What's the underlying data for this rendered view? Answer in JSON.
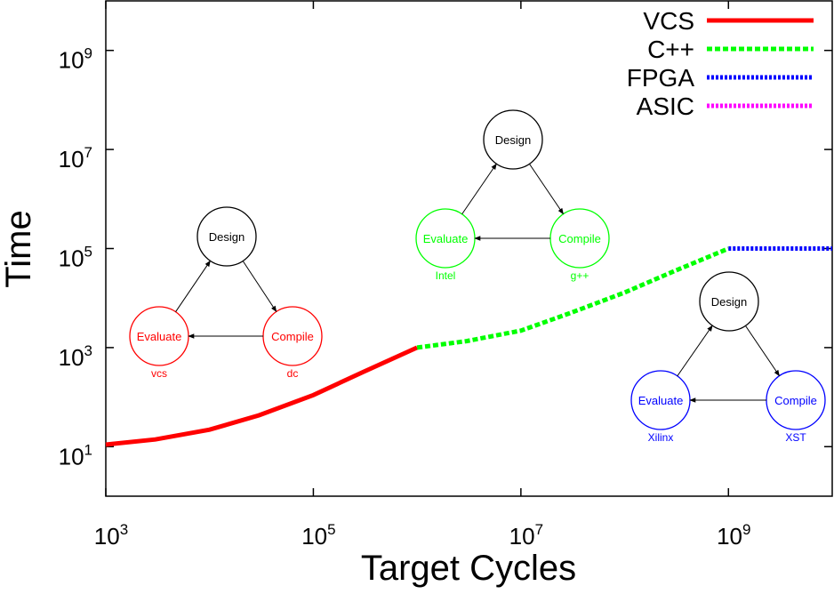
{
  "chart_data": {
    "type": "line",
    "xlabel": "Target Cycles",
    "ylabel": "Time",
    "x_scale": "log",
    "y_scale": "log",
    "xlim": [
      1000,
      10000000000
    ],
    "ylim": [
      1,
      10000000000
    ],
    "x_ticks": [
      {
        "base": "10",
        "exp": "3",
        "value": 1000
      },
      {
        "base": "10",
        "exp": "5",
        "value": 100000
      },
      {
        "base": "10",
        "exp": "7",
        "value": 10000000
      },
      {
        "base": "10",
        "exp": "9",
        "value": 1000000000
      }
    ],
    "y_ticks": [
      {
        "base": "10",
        "exp": "1",
        "value": 10
      },
      {
        "base": "10",
        "exp": "3",
        "value": 1000
      },
      {
        "base": "10",
        "exp": "5",
        "value": 100000
      },
      {
        "base": "10",
        "exp": "7",
        "value": 10000000
      },
      {
        "base": "10",
        "exp": "9",
        "value": 1000000000
      }
    ],
    "legend_position": "top-right",
    "series": [
      {
        "name": "VCS",
        "color": "#ff0000",
        "style": "solid",
        "x": [
          1000,
          3000,
          10000,
          30000,
          100000,
          300000,
          1000000
        ],
        "y": [
          11,
          14,
          22,
          43,
          110,
          320,
          1000
        ]
      },
      {
        "name": "C++",
        "color": "#00ff00",
        "style": "dashed",
        "x": [
          1000000,
          3000000,
          10000000,
          30000000,
          100000000,
          300000000,
          1000000000
        ],
        "y": [
          1000,
          1350,
          2200,
          5000,
          13000,
          35000,
          100000
        ]
      },
      {
        "name": "FPGA",
        "color": "#0000ff",
        "style": "dotted",
        "x": [
          1000000000,
          10000000000
        ],
        "y": [
          100000,
          100000
        ]
      },
      {
        "name": "ASIC",
        "color": "#ff00ff",
        "style": "dotted",
        "x": [],
        "y": []
      }
    ],
    "annotations": [
      {
        "id": "vcs",
        "color": "#ff0000",
        "design": "Design",
        "evaluate": "Evaluate",
        "compile": "Compile",
        "eval_tool": "vcs",
        "compile_tool": "dc"
      },
      {
        "id": "cpp",
        "color": "#00ff00",
        "design": "Design",
        "evaluate": "Evaluate",
        "compile": "Compile",
        "eval_tool": "Intel",
        "compile_tool": "g++"
      },
      {
        "id": "fpga",
        "color": "#0000ff",
        "design": "Design",
        "evaluate": "Evaluate",
        "compile": "Compile",
        "eval_tool": "Xilinx",
        "compile_tool": "XST"
      }
    ]
  }
}
